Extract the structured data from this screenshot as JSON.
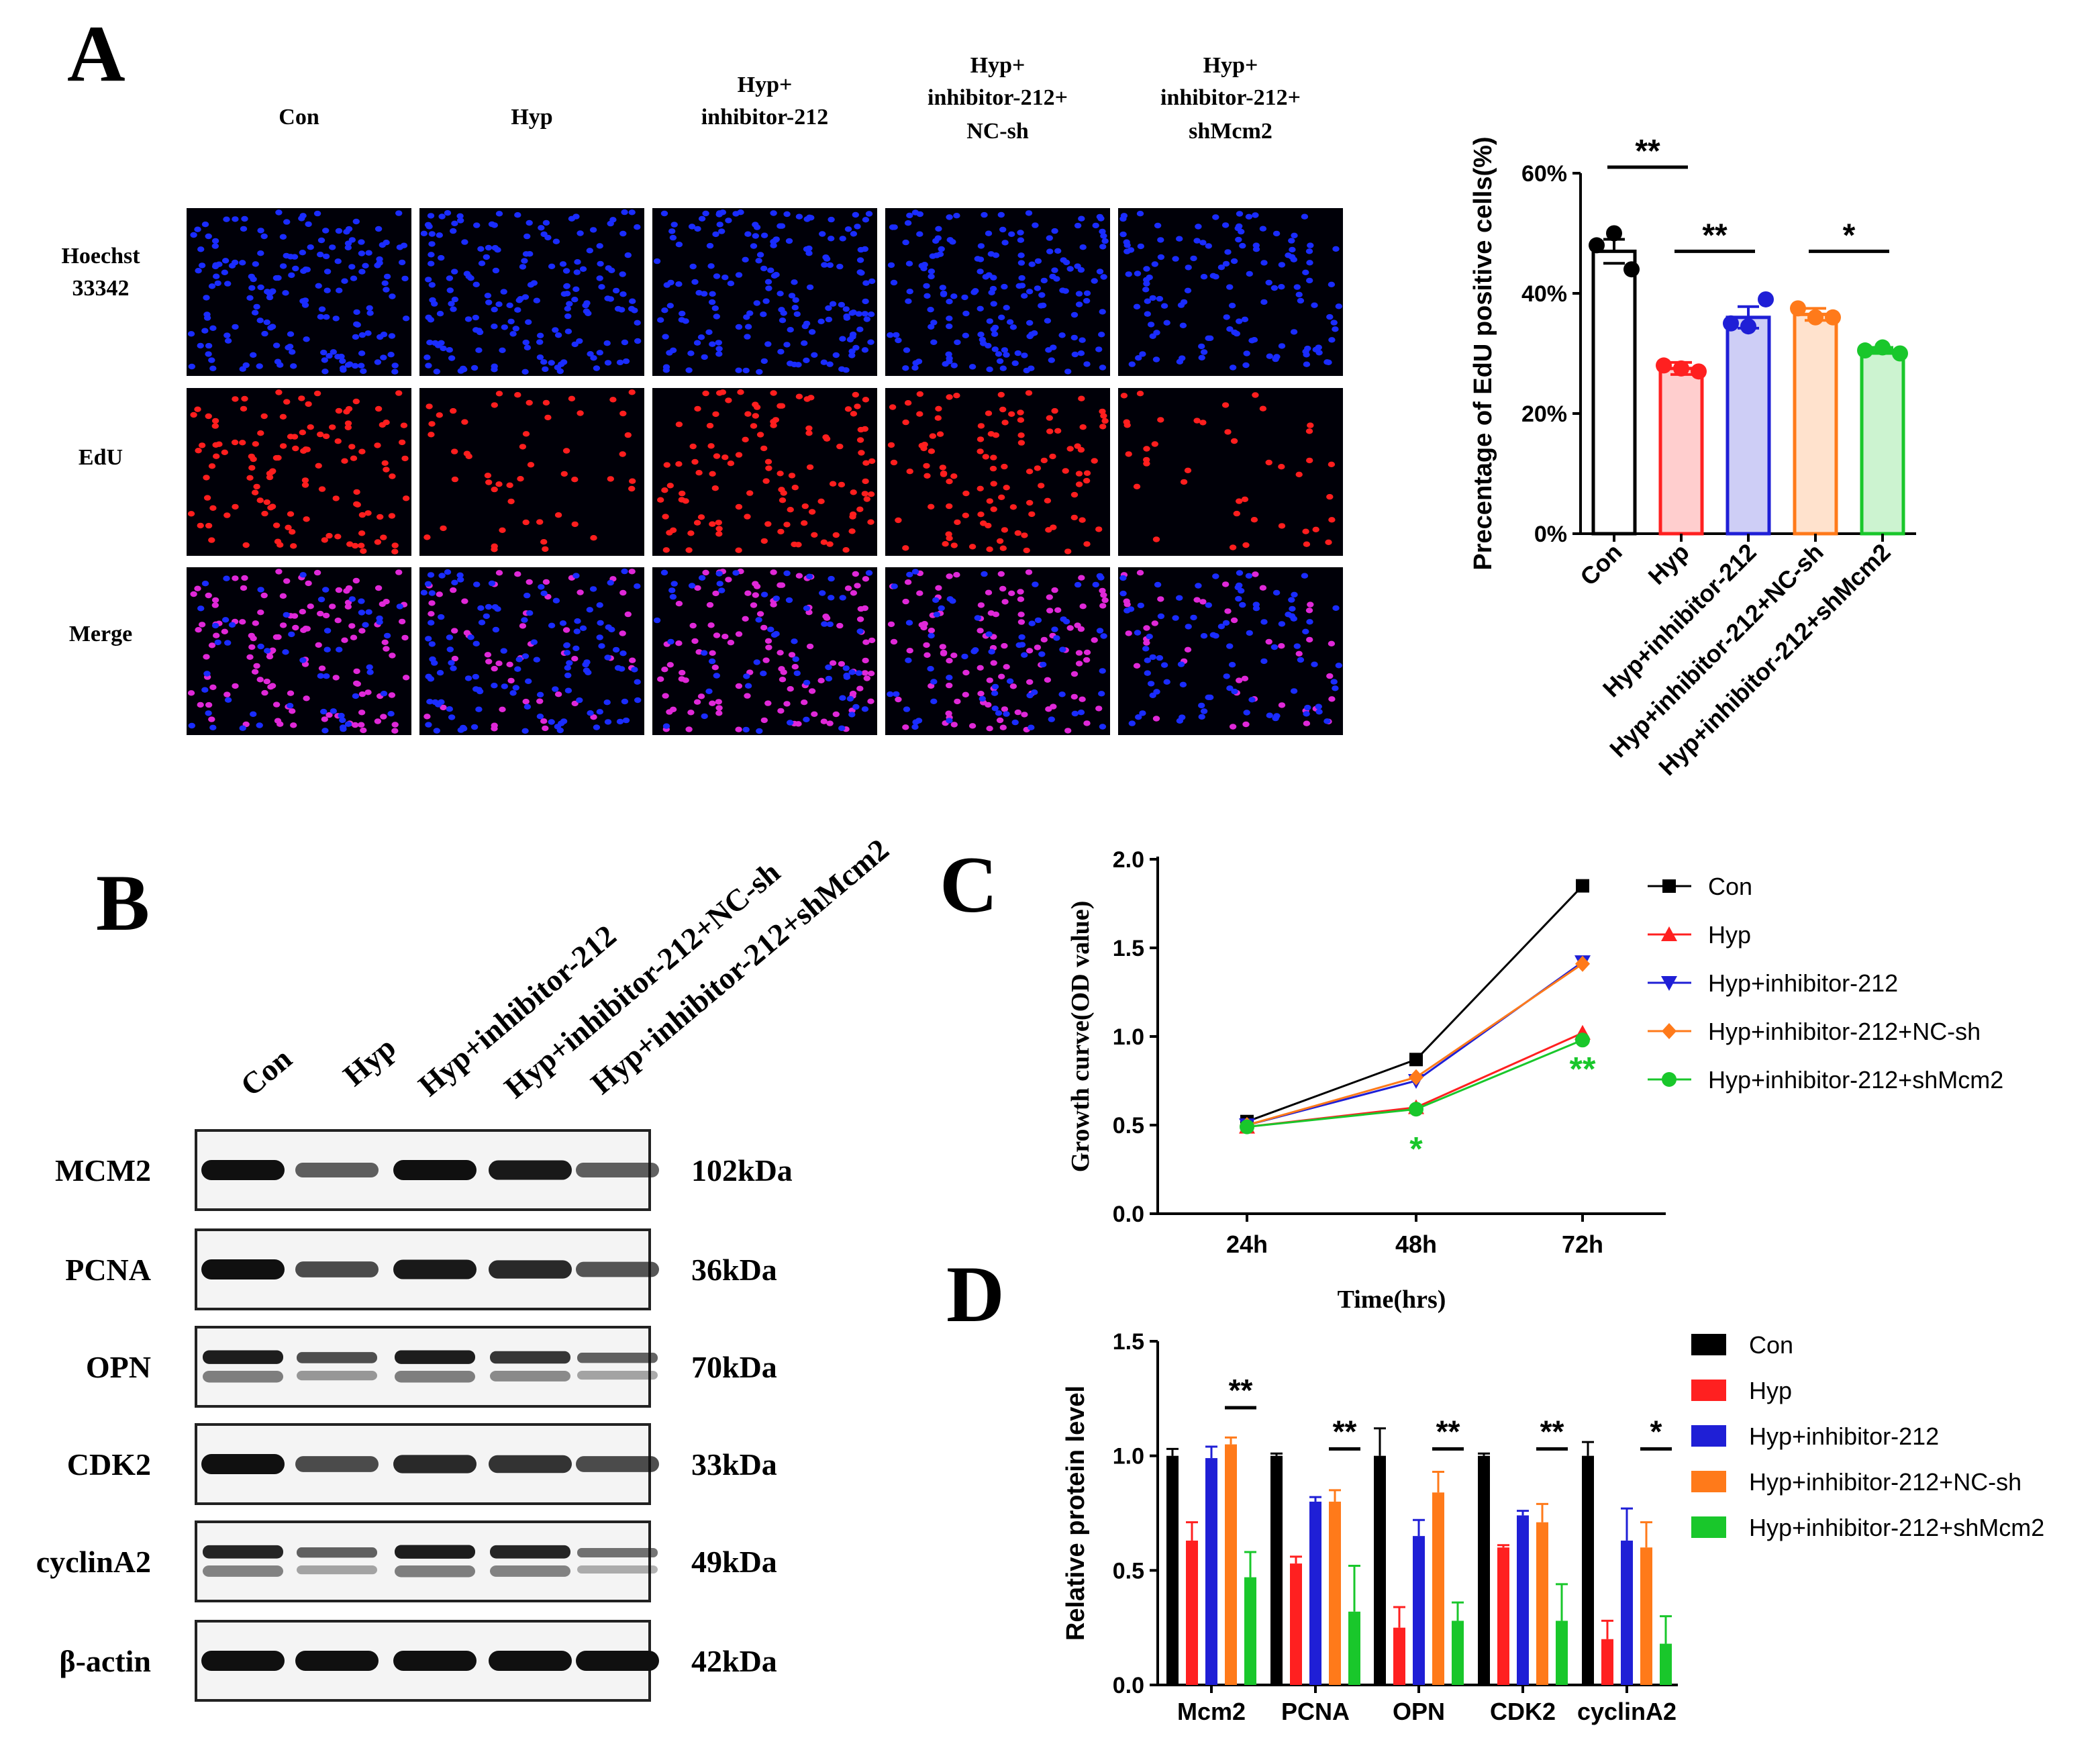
{
  "panel_letters": {
    "A": "A",
    "B": "B",
    "C": "C",
    "D": "D"
  },
  "colors": {
    "Con": "#000000",
    "Hyp": "#ff2020",
    "Hyp+inhibitor-212": "#1f1fd6",
    "Hyp+inhibitor-212+NC-sh": "#ff7a1a",
    "Hyp+inhibitor-212+shMcm2": "#19c72b"
  },
  "panel_a": {
    "column_headers": [
      [
        "Con"
      ],
      [
        "Hyp"
      ],
      [
        "Hyp+",
        "inhibitor-212"
      ],
      [
        "Hyp+",
        "inhibitor-212+",
        "NC-sh"
      ],
      [
        "Hyp+",
        "inhibitor-212+",
        "shMcm2"
      ]
    ],
    "row_labels": [
      [
        "Hoechst",
        "33342"
      ],
      [
        "EdU"
      ],
      [
        "Merge"
      ]
    ],
    "image_types": [
      "hoechst-blue-nuclei",
      "edu-red-nuclei",
      "merge-magenta-nuclei"
    ],
    "relative_density": [
      1.0,
      0.75,
      0.95,
      0.9,
      0.6
    ]
  },
  "panel_b": {
    "lanes": [
      "Con",
      "Hyp",
      "Hyp+inhibitor-212",
      "Hyp+inhibitor-212+NC-sh",
      "Hyp+inhibitor-212+shMcm2"
    ],
    "blots": [
      {
        "protein": "MCM2",
        "size": "102kDa",
        "intensity": [
          1.0,
          0.55,
          1.0,
          0.95,
          0.55
        ]
      },
      {
        "protein": "PCNA",
        "size": "36kDa",
        "intensity": [
          1.0,
          0.65,
          0.95,
          0.85,
          0.6
        ]
      },
      {
        "protein": "OPN",
        "size": "70kDa",
        "intensity": [
          0.95,
          0.65,
          0.95,
          0.8,
          0.55
        ]
      },
      {
        "protein": "CDK2",
        "size": "33kDa",
        "intensity": [
          1.0,
          0.65,
          0.85,
          0.8,
          0.65
        ]
      },
      {
        "protein": "cyclinA2",
        "size": "49kDa",
        "intensity": [
          0.9,
          0.55,
          0.95,
          0.9,
          0.45
        ]
      },
      {
        "protein": "β-actin",
        "size": "42kDa",
        "intensity": [
          1.0,
          1.0,
          1.0,
          1.0,
          1.0
        ]
      }
    ]
  },
  "chart_data": [
    {
      "panel": "A",
      "type": "bar",
      "ylabel": "Precentage of EdU positive cells(%)",
      "categories": [
        "Con",
        "Hyp",
        "Hyp+inhibitor-212",
        "Hyp+inhibitor-212+NC-sh",
        "Hyp+inhibitor-212+shMcm2"
      ],
      "values": [
        47,
        27.5,
        36,
        36.5,
        30.5
      ],
      "errors": [
        2,
        1,
        1.8,
        1,
        0.5
      ],
      "points": [
        [
          48,
          44,
          50
        ],
        [
          28,
          27,
          27.5
        ],
        [
          35,
          39,
          34.5
        ],
        [
          37.5,
          36,
          36
        ],
        [
          30.5,
          30,
          31
        ]
      ],
      "ylim": [
        0,
        60
      ],
      "yticks": [
        0,
        20,
        40,
        60
      ],
      "ytick_labels": [
        "0%",
        "20%",
        "40%",
        "60%"
      ],
      "significance": [
        {
          "from": 0,
          "to": 1,
          "label": "**",
          "level": 61
        },
        {
          "from": 1,
          "to": 2,
          "label": "**",
          "level": 47
        },
        {
          "from": 3,
          "to": 4,
          "label": "*",
          "level": 47
        }
      ]
    },
    {
      "panel": "C",
      "type": "line",
      "xlabel": "Time(hrs)",
      "ylabel": "Growth curve(OD value)",
      "x": [
        "24h",
        "48h",
        "72h"
      ],
      "series": [
        {
          "name": "Con",
          "values": [
            0.52,
            0.87,
            1.85
          ],
          "marker": "square"
        },
        {
          "name": "Hyp",
          "values": [
            0.49,
            0.6,
            1.02
          ],
          "marker": "triangle-up"
        },
        {
          "name": "Hyp+inhibitor-212",
          "values": [
            0.5,
            0.75,
            1.42
          ],
          "marker": "triangle-down"
        },
        {
          "name": "Hyp+inhibitor-212+NC-sh",
          "values": [
            0.5,
            0.77,
            1.41
          ],
          "marker": "diamond"
        },
        {
          "name": "Hyp+inhibitor-212+shMcm2",
          "values": [
            0.49,
            0.59,
            0.98
          ],
          "marker": "circle"
        }
      ],
      "ylim": [
        0,
        2.0
      ],
      "yticks": [
        0.0,
        0.5,
        1.0,
        1.5,
        2.0
      ],
      "ytick_labels": [
        "0.0",
        "0.5",
        "1.0",
        "1.5",
        "2.0"
      ],
      "annotations": [
        {
          "x_index": 1,
          "y": 0.37,
          "text": "*"
        },
        {
          "x_index": 2,
          "y": 0.82,
          "text": "**"
        }
      ],
      "legend": "right"
    },
    {
      "panel": "D",
      "type": "bar",
      "ylabel": "Relative protein level",
      "categories": [
        "Mcm2",
        "PCNA",
        "OPN",
        "CDK2",
        "cyclinA2"
      ],
      "series": [
        {
          "name": "Con",
          "values": [
            1.0,
            1.0,
            1.0,
            1.0,
            1.0
          ],
          "errors": [
            0.03,
            0.01,
            0.12,
            0.01,
            0.06
          ]
        },
        {
          "name": "Hyp",
          "values": [
            0.63,
            0.53,
            0.25,
            0.6,
            0.2
          ],
          "errors": [
            0.08,
            0.03,
            0.09,
            0.01,
            0.08
          ]
        },
        {
          "name": "Hyp+inhibitor-212",
          "values": [
            0.99,
            0.8,
            0.65,
            0.74,
            0.63
          ],
          "errors": [
            0.05,
            0.02,
            0.07,
            0.02,
            0.14
          ]
        },
        {
          "name": "Hyp+inhibitor-212+NC-sh",
          "values": [
            1.05,
            0.8,
            0.84,
            0.71,
            0.6
          ],
          "errors": [
            0.03,
            0.05,
            0.09,
            0.08,
            0.11
          ]
        },
        {
          "name": "Hyp+inhibitor-212+shMcm2",
          "values": [
            0.47,
            0.32,
            0.28,
            0.28,
            0.18
          ],
          "errors": [
            0.11,
            0.2,
            0.08,
            0.16,
            0.12
          ]
        }
      ],
      "ylim": [
        0,
        1.5
      ],
      "yticks": [
        0.0,
        0.5,
        1.0,
        1.5
      ],
      "ytick_labels": [
        "0.0",
        "0.5",
        "1.0",
        "1.5"
      ],
      "significance": [
        {
          "category": 0,
          "label": "**",
          "level": 1.21
        },
        {
          "category": 1,
          "label": "**",
          "level": 1.03
        },
        {
          "category": 2,
          "label": "**",
          "level": 1.03
        },
        {
          "category": 3,
          "label": "**",
          "level": 1.03
        },
        {
          "category": 4,
          "label": "*",
          "level": 1.03
        }
      ],
      "legend": "right"
    }
  ]
}
